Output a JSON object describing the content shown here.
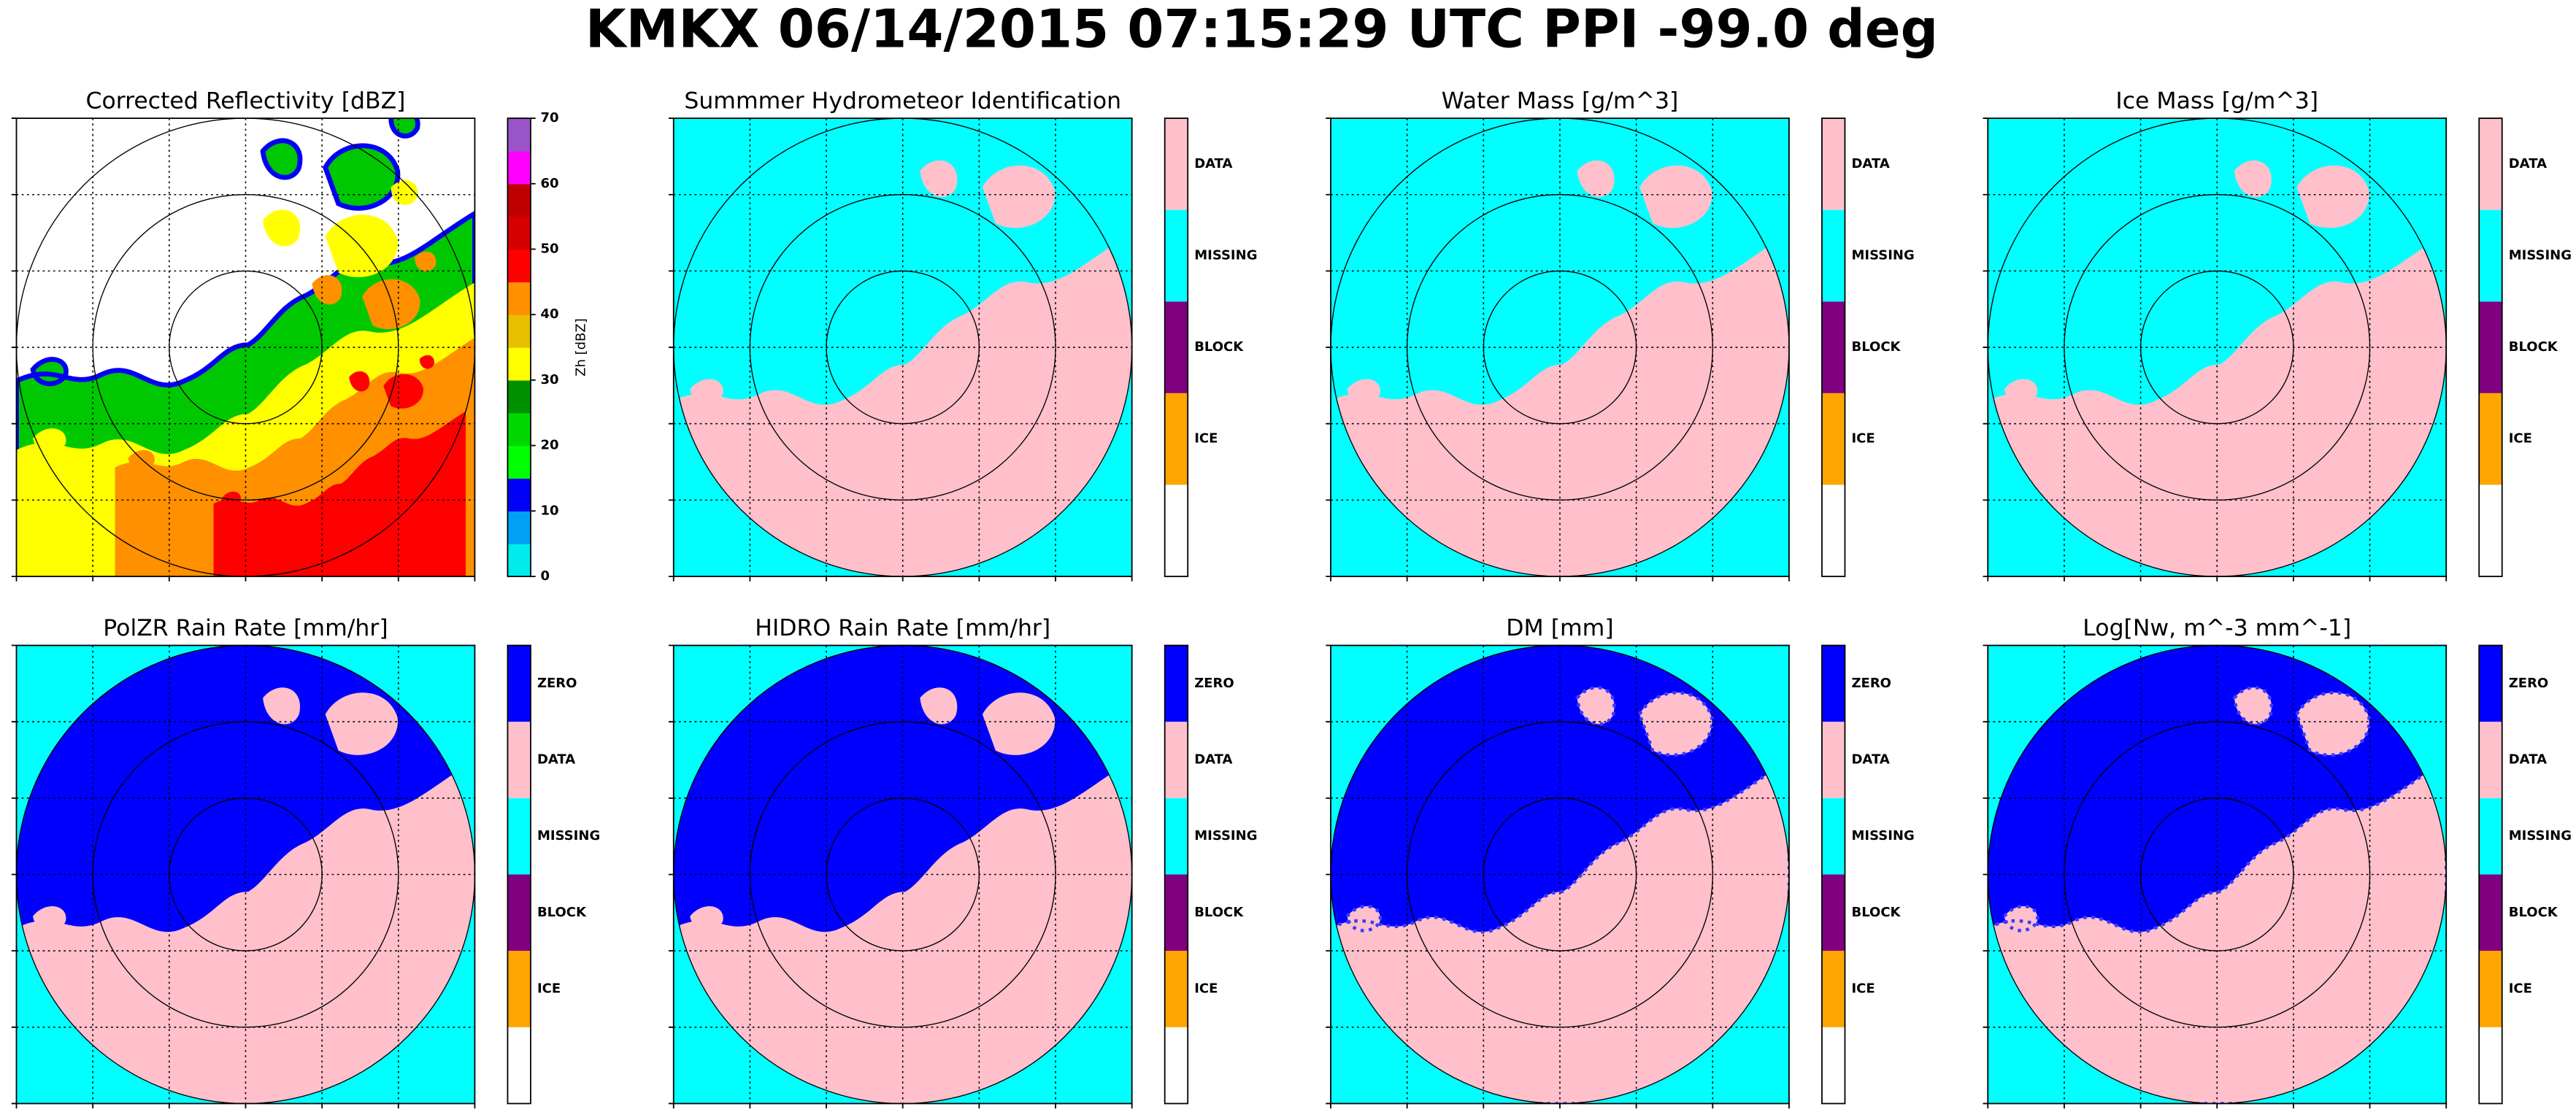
{
  "title": "KMKX 06/14/2015 07:15:29 UTC PPI -99.0 deg",
  "panels": [
    {
      "title": "Corrected Reflectivity [dBZ]",
      "colorbar": {
        "label": "Zh [dBZ]",
        "lim": [
          0,
          70
        ],
        "ticks": [
          0,
          10,
          20,
          30,
          40,
          50,
          60,
          70
        ],
        "colors": [
          "#00ecec",
          "#01a0f6",
          "#0000f6",
          "#00ff00",
          "#00d800",
          "#009000",
          "#ffff00",
          "#e7c000",
          "#ff9000",
          "#ff0000",
          "#d60000",
          "#c00000",
          "#ff00ff",
          "#9955c9"
        ]
      }
    },
    {
      "title": "Summmer Hydrometeor Identification",
      "colorbar": {
        "categories": [
          null,
          "ICE",
          "BLOCK",
          "MISSING",
          "DATA"
        ],
        "colors": [
          "#ffffff",
          "#ffa500",
          "#800080",
          "#00ffff",
          "#ffc0cb"
        ]
      }
    },
    {
      "title": "Water Mass [g/m^3]",
      "colorbar": {
        "categories": [
          null,
          "ICE",
          "BLOCK",
          "MISSING",
          "DATA"
        ],
        "colors": [
          "#ffffff",
          "#ffa500",
          "#800080",
          "#00ffff",
          "#ffc0cb"
        ]
      }
    },
    {
      "title": "Ice Mass [g/m^3]",
      "colorbar": {
        "categories": [
          null,
          "ICE",
          "BLOCK",
          "MISSING",
          "DATA"
        ],
        "colors": [
          "#ffffff",
          "#ffa500",
          "#800080",
          "#00ffff",
          "#ffc0cb"
        ]
      }
    },
    {
      "title": "PolZR Rain Rate [mm/hr]",
      "colorbar": {
        "categories": [
          null,
          "ICE",
          "BLOCK",
          "MISSING",
          "DATA",
          "ZERO"
        ],
        "colors": [
          "#ffffff",
          "#ffa500",
          "#800080",
          "#00ffff",
          "#ffc0cb",
          "#0000ff"
        ]
      }
    },
    {
      "title": "HIDRO Rain Rate [mm/hr]",
      "colorbar": {
        "categories": [
          null,
          "ICE",
          "BLOCK",
          "MISSING",
          "DATA",
          "ZERO"
        ],
        "colors": [
          "#ffffff",
          "#ffa500",
          "#800080",
          "#00ffff",
          "#ffc0cb",
          "#0000ff"
        ]
      }
    },
    {
      "title": "DM [mm]",
      "colorbar": {
        "categories": [
          null,
          "ICE",
          "BLOCK",
          "MISSING",
          "DATA",
          "ZERO"
        ],
        "colors": [
          "#ffffff",
          "#ffa500",
          "#800080",
          "#00ffff",
          "#ffc0cb",
          "#0000ff"
        ]
      }
    },
    {
      "title": "Log[Nw, m^-3 mm^-1]",
      "colorbar": {
        "categories": [
          null,
          "ICE",
          "BLOCK",
          "MISSING",
          "DATA",
          "ZERO"
        ],
        "colors": [
          "#ffffff",
          "#ffa500",
          "#800080",
          "#00ffff",
          "#ffc0cb",
          "#0000ff"
        ]
      }
    }
  ]
}
